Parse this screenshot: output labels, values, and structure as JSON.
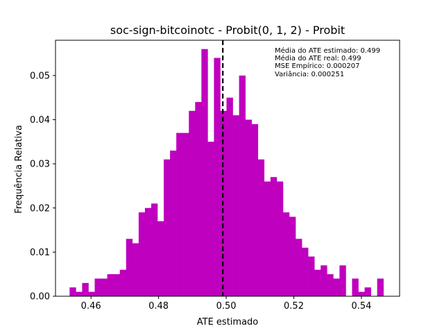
{
  "chart_data": {
    "type": "bar",
    "title": "soc-sign-bitcoinotc - Probit(0, 1, 2) - Probit",
    "xlabel": "ATE estimado",
    "ylabel": "Frequência Relativa",
    "xlim": [
      0.4495,
      0.5513
    ],
    "ylim": [
      0,
      0.058
    ],
    "xticks": [
      0.46,
      0.48,
      0.5,
      0.52,
      0.54
    ],
    "xtick_labels": [
      "0.46",
      "0.48",
      "0.50",
      "0.52",
      "0.54"
    ],
    "yticks": [
      0.0,
      0.01,
      0.02,
      0.03,
      0.04,
      0.05
    ],
    "ytick_labels": [
      "0.00",
      "0.01",
      "0.02",
      "0.03",
      "0.04",
      "0.05"
    ],
    "bar_color": "#bf00bf",
    "bins": {
      "start": 0.45367,
      "width": 0.001857,
      "values": [
        0.002,
        0.001,
        0.003,
        0.001,
        0.004,
        0.004,
        0.005,
        0.005,
        0.006,
        0.013,
        0.012,
        0.019,
        0.02,
        0.021,
        0.017,
        0.031,
        0.033,
        0.037,
        0.037,
        0.042,
        0.044,
        0.056,
        0.035,
        0.054,
        0.042,
        0.045,
        0.041,
        0.05,
        0.04,
        0.039,
        0.031,
        0.026,
        0.027,
        0.026,
        0.019,
        0.018,
        0.013,
        0.011,
        0.009,
        0.006,
        0.007,
        0.005,
        0.004,
        0.007,
        0.0,
        0.004,
        0.001,
        0.002,
        0.0,
        0.004
      ]
    },
    "vline": {
      "x": 0.499,
      "color": "#000000",
      "style": "dashed"
    },
    "annotations": [
      "Média do ATE estimado: 0.499",
      "Média do ATE real: 0.499",
      "MSE Empírico: 0.000207",
      "Variância: 0.000251"
    ]
  }
}
